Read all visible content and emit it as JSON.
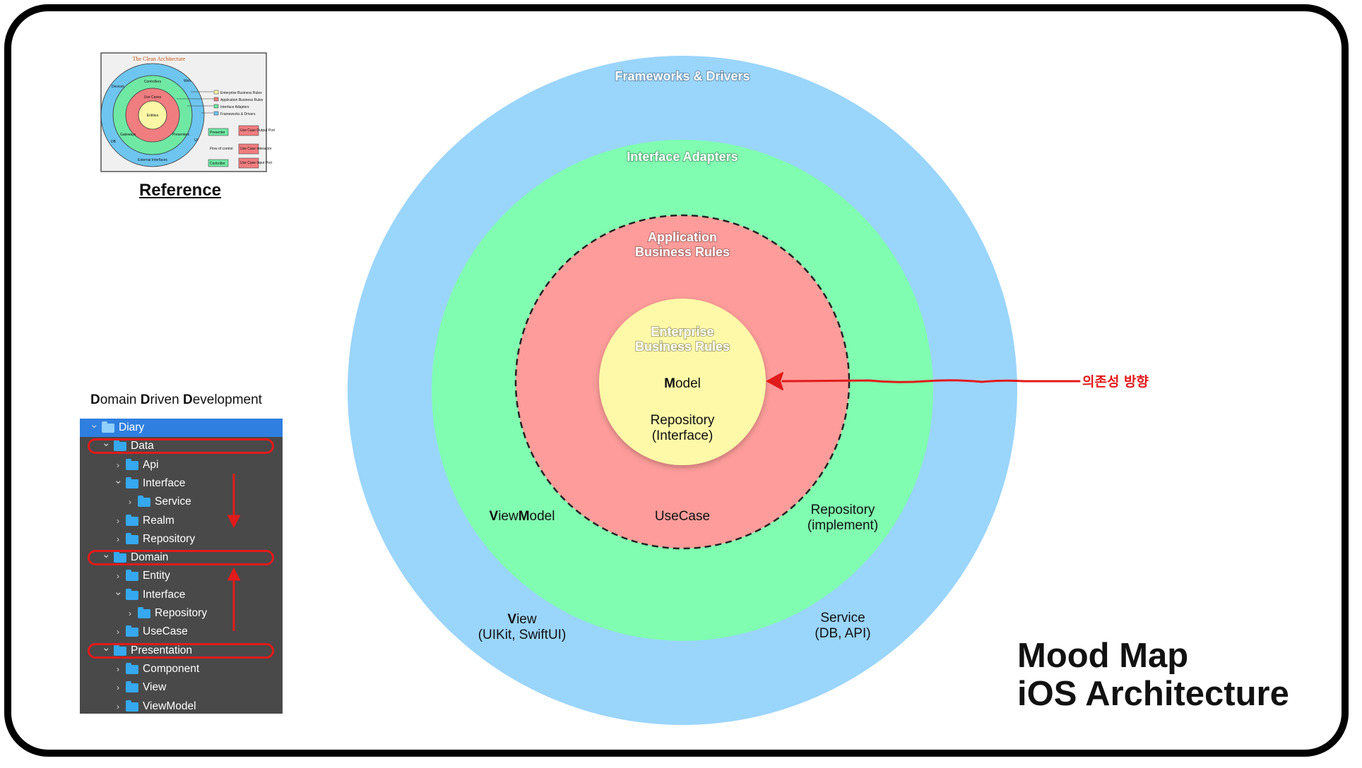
{
  "reference": {
    "caption": "Reference",
    "thumbnail": {
      "title": "The Clean Architecture",
      "labels": [
        "Controllers",
        "Use Cases",
        "Entities",
        "Web",
        "Devices",
        "DB",
        "Gateways",
        "Presenters",
        "UI",
        "External Interfaces"
      ],
      "legend": [
        "Enterprise Business Rules",
        "Application Business Rules",
        "Interface Adapters",
        "Frameworks & Drivers"
      ],
      "flow": [
        "Presenter",
        "Use Case Output Port",
        "Use Case Interactor",
        "Controller",
        "Use Case Input Port",
        "Flow of control"
      ]
    }
  },
  "diagram": {
    "colors": {
      "frameworks": "#9ad5fc",
      "adapters": "#80fdb0",
      "application": "#fd9c9a",
      "enterprise": "#fdf9a8",
      "arrow": "#e11b1b"
    },
    "rings": {
      "frameworks": "Frameworks & Drivers",
      "adapters": "Interface Adapters",
      "application_1": "Application",
      "application_2": "Business Rules",
      "enterprise_1": "Enterprise",
      "enterprise_2": "Business Rules"
    },
    "core": {
      "model_bold": "M",
      "model_rest": "odel",
      "repository_1": "Repository",
      "repository_2": "(Interface)"
    },
    "application_items": {
      "usecase": "UseCase"
    },
    "adapter_items": {
      "viewmodel_b1": "V",
      "viewmodel_r1": "iew",
      "viewmodel_b2": "M",
      "viewmodel_r2": "odel",
      "repository_1": "Repository",
      "repository_2": "(implement)"
    },
    "framework_items": {
      "view_bold": "V",
      "view_rest": "iew",
      "view_2": "(UIKit, SwiftUI)",
      "service_1": "Service",
      "service_2": "(DB, API)"
    },
    "dependency_arrow_label": "의존성 방향"
  },
  "ddd": {
    "title_parts": [
      {
        "text": "D",
        "bold": true
      },
      {
        "text": "omain ",
        "bold": false
      },
      {
        "text": "D",
        "bold": true
      },
      {
        "text": "riven ",
        "bold": false
      },
      {
        "text": "D",
        "bold": true
      },
      {
        "text": "evelopment",
        "bold": false
      }
    ],
    "tree": [
      {
        "label": "Diary",
        "depth": 0,
        "expanded": true,
        "selected": true
      },
      {
        "label": "Data",
        "depth": 1,
        "expanded": true,
        "highlight": true
      },
      {
        "label": "Api",
        "depth": 2,
        "expanded": false
      },
      {
        "label": "Interface",
        "depth": 2,
        "expanded": true
      },
      {
        "label": "Service",
        "depth": 3,
        "expanded": false
      },
      {
        "label": "Realm",
        "depth": 2,
        "expanded": false
      },
      {
        "label": "Repository",
        "depth": 2,
        "expanded": false
      },
      {
        "label": "Domain",
        "depth": 1,
        "expanded": true,
        "highlight": true
      },
      {
        "label": "Entity",
        "depth": 2,
        "expanded": false
      },
      {
        "label": "Interface",
        "depth": 2,
        "expanded": true
      },
      {
        "label": "Repository",
        "depth": 3,
        "expanded": false
      },
      {
        "label": "UseCase",
        "depth": 2,
        "expanded": false
      },
      {
        "label": "Presentation",
        "depth": 1,
        "expanded": true,
        "highlight": true
      },
      {
        "label": "Component",
        "depth": 2,
        "expanded": false
      },
      {
        "label": "View",
        "depth": 2,
        "expanded": false
      },
      {
        "label": "ViewModel",
        "depth": 2,
        "expanded": false
      }
    ]
  },
  "title": {
    "line1": "Mood Map",
    "line2": "iOS Architecture"
  }
}
